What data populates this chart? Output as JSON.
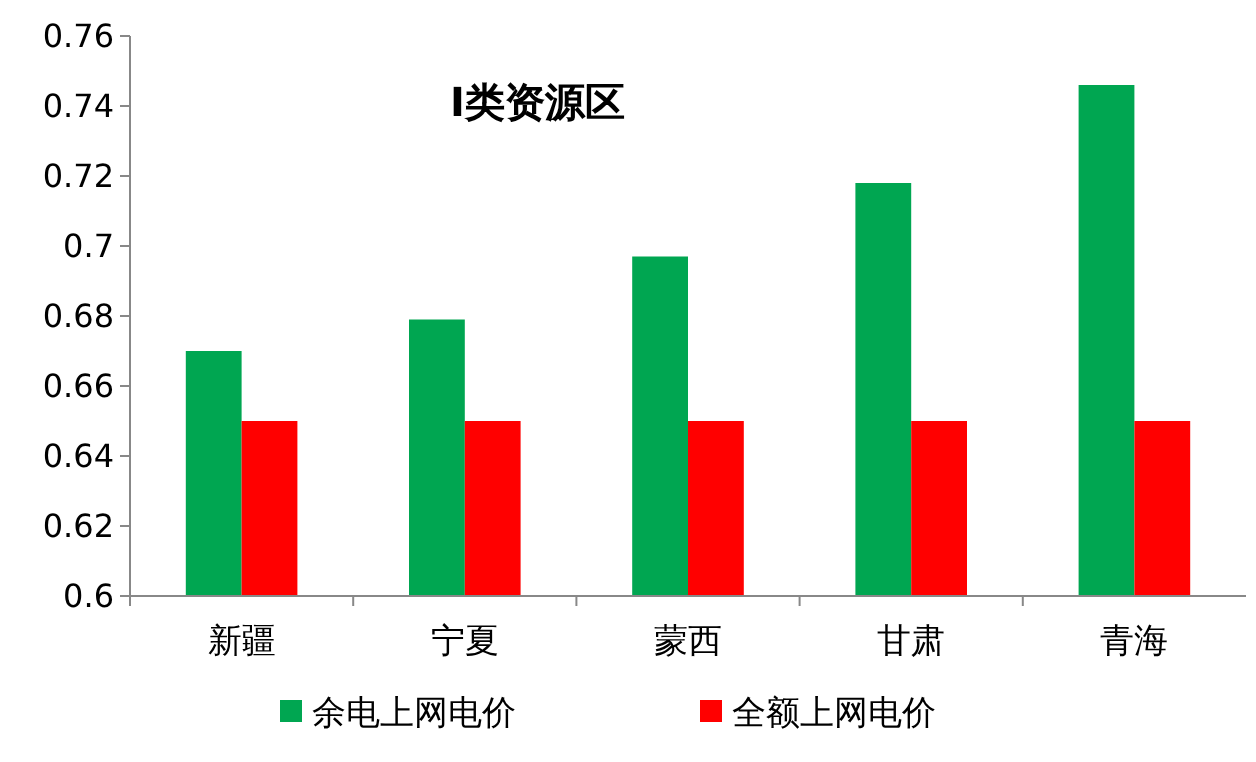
{
  "chart_data": {
    "type": "bar",
    "title": "Ⅰ类资源区",
    "categories": [
      "新疆",
      "宁夏",
      "蒙西",
      "甘肃",
      "青海"
    ],
    "series": [
      {
        "name": "余电上网电价",
        "color": "#00a651",
        "values": [
          0.67,
          0.679,
          0.697,
          0.718,
          0.746
        ]
      },
      {
        "name": "全额上网电价",
        "color": "#ff0000",
        "values": [
          0.65,
          0.65,
          0.65,
          0.65,
          0.65
        ]
      }
    ],
    "ylim": [
      0.6,
      0.76
    ],
    "yticks": [
      0.6,
      0.62,
      0.64,
      0.66,
      0.68,
      0.7,
      0.72,
      0.74,
      0.76
    ],
    "grid": false,
    "legend": "bottom"
  }
}
